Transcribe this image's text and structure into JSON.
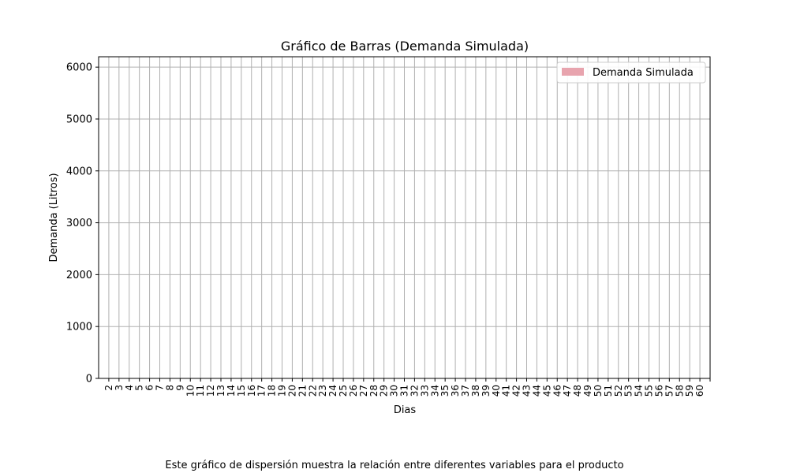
{
  "chart_data": {
    "type": "bar",
    "title": "Gráfico de Barras (Demanda Simulada)",
    "xlabel": "Dias",
    "ylabel": "Demanda (Litros)",
    "categories": [
      "2",
      "3",
      "4",
      "5",
      "6",
      "7",
      "8",
      "9",
      "10",
      "11",
      "12",
      "13",
      "14",
      "15",
      "16",
      "17",
      "18",
      "19",
      "20",
      "21",
      "22",
      "23",
      "24",
      "25",
      "26",
      "27",
      "28",
      "29",
      "30",
      "31",
      "32",
      "33",
      "34",
      "35",
      "36",
      "37",
      "38",
      "39",
      "40",
      "41",
      "42",
      "43",
      "44",
      "45",
      "46",
      "47",
      "48",
      "49",
      "50",
      "51",
      "52",
      "53",
      "54",
      "55",
      "56",
      "57",
      "58",
      "59",
      "60"
    ],
    "series": [
      {
        "name": "Demanda Simulada",
        "color": "#e8a4ae",
        "values": [
          0,
          0,
          0,
          0,
          0,
          0,
          0,
          0,
          0,
          0,
          0,
          0,
          0,
          0,
          0,
          0,
          0,
          0,
          0,
          0,
          0,
          0,
          0,
          0,
          0,
          0,
          0,
          0,
          0,
          0,
          0,
          0,
          0,
          0,
          0,
          0,
          0,
          0,
          0,
          0,
          0,
          0,
          0,
          0,
          0,
          0,
          0,
          0,
          0,
          0,
          0,
          0,
          0,
          0,
          0,
          0,
          0,
          0,
          0
        ]
      }
    ],
    "yticks": [
      0,
      1000,
      2000,
      3000,
      4000,
      5000,
      6000
    ],
    "ylim": [
      0,
      6200
    ],
    "grid": true,
    "legend_position": "top-right"
  },
  "caption": "Este gráfico de dispersión muestra la relación entre diferentes variables para el producto"
}
